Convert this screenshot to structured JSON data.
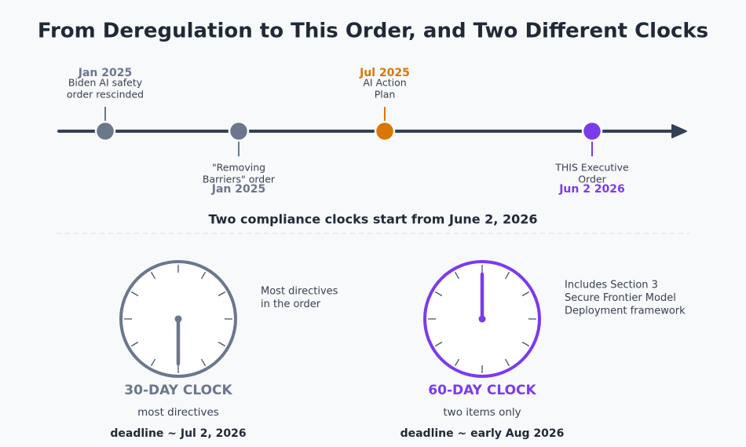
{
  "title": "From Deregulation to This Order, and Two Different Clocks",
  "timeline": {
    "events": [
      {
        "date": "Jan 2025",
        "label_lines": [
          "Biden AI safety",
          "order rescinded"
        ],
        "position": "above",
        "color": "#6b778d"
      },
      {
        "date": "Jan 2025",
        "label_lines": [
          "\"Removing",
          "Barriers\" order"
        ],
        "position": "below",
        "color": "#6b778d"
      },
      {
        "date": "Jul 2025",
        "label_lines": [
          "AI Action",
          "Plan"
        ],
        "position": "above",
        "color": "#d97706"
      },
      {
        "date": "Jun 2 2026",
        "label_lines": [
          "THIS Executive",
          "Order"
        ],
        "position": "below",
        "color": "#7c3aed"
      }
    ]
  },
  "subtitle": "Two compliance clocks start from June 2, 2026",
  "clocks": [
    {
      "title": "30-DAY CLOCK",
      "scope": "most directives",
      "deadline": "deadline ~ Jul 2, 2026",
      "note_lines": [
        "Most directives",
        "in the order"
      ],
      "color": "#6b778d",
      "hand": "down"
    },
    {
      "title": "60-DAY CLOCK",
      "scope": "two items only",
      "deadline": "deadline ~ early Aug 2026",
      "note_lines": [
        "Includes Section 3",
        "Secure Frontier Model",
        "Deployment framework"
      ],
      "color": "#7c3aed",
      "hand": "up"
    }
  ]
}
